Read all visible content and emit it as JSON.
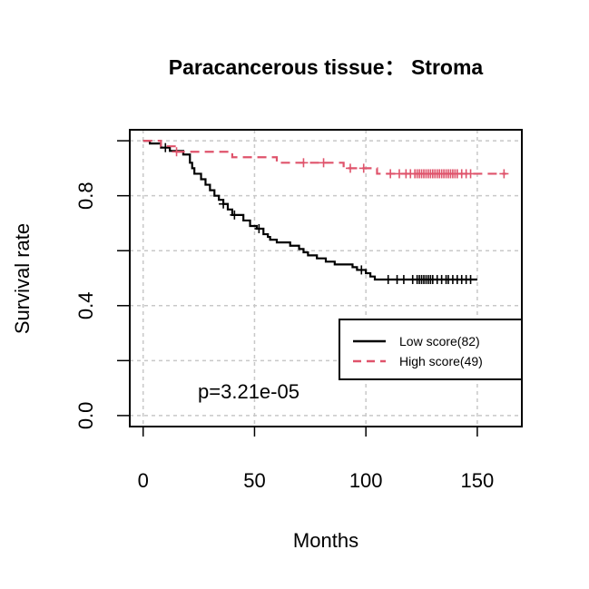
{
  "chart_data": {
    "type": "line",
    "subtype": "kaplan-meier",
    "title": "Paracancerous tissue： Stroma",
    "xlabel": "Months",
    "ylabel": "Survival rate",
    "xlim": [
      -6,
      170
    ],
    "ylim": [
      -0.04,
      1.04
    ],
    "x_ticks": [
      0,
      50,
      100,
      150
    ],
    "x_tick_labels": [
      "0",
      "50",
      "100",
      "150"
    ],
    "y_ticks": [
      0.0,
      0.2,
      0.4,
      0.6,
      0.8,
      1.0
    ],
    "y_tick_labels": [
      "0.0",
      "",
      "0.4",
      "",
      "0.8",
      ""
    ],
    "grid": true,
    "legend_position": "right",
    "annotation": "p=3.21e-05",
    "series": [
      {
        "name": "Low score(82)",
        "color": "#000000",
        "dash": "solid",
        "steps": [
          [
            0,
            1.0
          ],
          [
            3,
            0.99
          ],
          [
            8,
            0.975
          ],
          [
            12,
            0.963
          ],
          [
            18,
            0.95
          ],
          [
            21,
            0.92
          ],
          [
            22,
            0.9
          ],
          [
            23,
            0.88
          ],
          [
            26,
            0.86
          ],
          [
            28,
            0.84
          ],
          [
            30,
            0.82
          ],
          [
            32,
            0.8
          ],
          [
            34,
            0.785
          ],
          [
            36,
            0.77
          ],
          [
            38,
            0.75
          ],
          [
            40,
            0.73
          ],
          [
            45,
            0.71
          ],
          [
            48,
            0.69
          ],
          [
            51,
            0.68
          ],
          [
            54,
            0.66
          ],
          [
            56,
            0.65
          ],
          [
            57,
            0.64
          ],
          [
            60,
            0.63
          ],
          [
            66,
            0.618
          ],
          [
            70,
            0.606
          ],
          [
            72,
            0.594
          ],
          [
            74,
            0.583
          ],
          [
            78,
            0.572
          ],
          [
            82,
            0.56
          ],
          [
            86,
            0.55
          ],
          [
            94,
            0.54
          ],
          [
            96,
            0.53
          ],
          [
            100,
            0.518
          ],
          [
            102,
            0.506
          ],
          [
            104,
            0.495
          ],
          [
            150,
            0.495
          ]
        ],
        "censor_x": [
          10,
          36,
          41,
          52,
          98,
          110,
          114,
          117,
          121,
          123,
          124,
          125,
          126,
          127,
          128,
          129,
          130,
          132,
          134,
          136,
          137,
          139,
          141,
          143,
          145,
          147
        ]
      },
      {
        "name": "High score(49)",
        "color": "#df536b",
        "dash": "dashed",
        "steps": [
          [
            0,
            1.0
          ],
          [
            8,
            0.98
          ],
          [
            15,
            0.96
          ],
          [
            40,
            0.94
          ],
          [
            60,
            0.92
          ],
          [
            90,
            0.9
          ],
          [
            105,
            0.88
          ],
          [
            110,
            0.88
          ],
          [
            163,
            0.88
          ]
        ],
        "censor_x": [
          15,
          72,
          81,
          93,
          99,
          111,
          115,
          118,
          120,
          122,
          123,
          124,
          125,
          126,
          127,
          128,
          129,
          130,
          131,
          132,
          133,
          134,
          135,
          136,
          137,
          138,
          139,
          140,
          141,
          143,
          145,
          147,
          162
        ]
      }
    ]
  }
}
